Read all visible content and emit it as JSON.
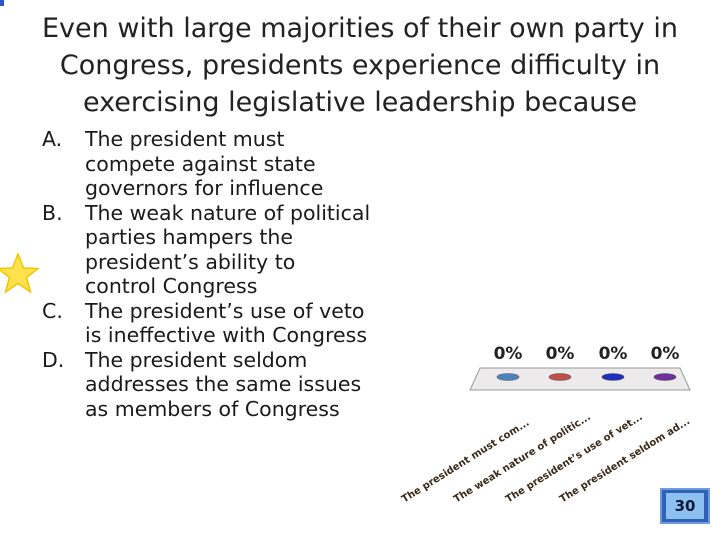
{
  "slide": {
    "title": "Even with large majorities of their own party in Congress, presidents experience difficulty in exercising legislative leadership because",
    "answers": [
      {
        "letter": "A.",
        "text": "The president must compete against state governors for influence"
      },
      {
        "letter": "B.",
        "text": "The weak nature of political parties hampers the president’s ability to control Congress"
      },
      {
        "letter": "C.",
        "text": "The president’s use of veto is ineffective with Congress"
      },
      {
        "letter": "D.",
        "text": "The president seldom addresses the same issues as members of Congress"
      }
    ],
    "countdown": "30"
  },
  "chart_data": {
    "type": "bar",
    "title": "",
    "categories": [
      "The president must com...",
      "The weak nature of politic...",
      "The president’s use of vet...",
      "The president seldom ad..."
    ],
    "values": [
      0,
      0,
      0,
      0
    ],
    "value_labels": [
      "0%",
      "0%",
      "0%",
      "0%"
    ],
    "ylim": [
      0,
      100
    ],
    "xlabel": "",
    "ylabel": "",
    "colors": [
      "#4f81bd",
      "#c0504d",
      "#1f2fbf",
      "#7030a0"
    ]
  }
}
